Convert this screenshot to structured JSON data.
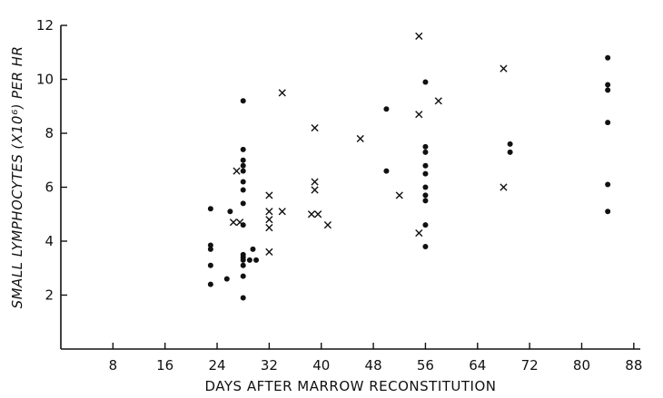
{
  "chart_data": {
    "type": "scatter",
    "xlabel": "DAYS AFTER MARROW RECONSTITUTION",
    "ylabel": "SMALL LYMPHOCYTES (X10⁶) PER HR",
    "xlim": [
      0,
      89
    ],
    "ylim": [
      0,
      12
    ],
    "xticks": [
      8,
      16,
      24,
      32,
      40,
      48,
      56,
      64,
      72,
      80,
      88
    ],
    "yticks": [
      2,
      4,
      6,
      8,
      10,
      12
    ],
    "grid": false,
    "series": [
      {
        "marker": "dot",
        "points": [
          [
            23,
            2.4
          ],
          [
            23,
            3.1
          ],
          [
            23,
            3.7
          ],
          [
            23,
            3.85
          ],
          [
            23,
            5.2
          ],
          [
            25.5,
            2.6
          ],
          [
            26,
            5.1
          ],
          [
            28,
            1.9
          ],
          [
            28,
            2.7
          ],
          [
            28,
            3.1
          ],
          [
            28,
            3.3
          ],
          [
            28,
            3.4
          ],
          [
            28,
            3.5
          ],
          [
            28,
            4.6
          ],
          [
            28,
            5.4
          ],
          [
            28,
            5.9
          ],
          [
            28,
            6.2
          ],
          [
            28,
            6.6
          ],
          [
            28,
            6.8
          ],
          [
            28,
            7.0
          ],
          [
            28,
            7.4
          ],
          [
            28,
            9.2
          ],
          [
            29,
            3.3
          ],
          [
            29.5,
            3.7
          ],
          [
            30,
            3.3
          ],
          [
            50,
            6.6
          ],
          [
            50,
            8.9
          ],
          [
            56,
            3.8
          ],
          [
            56,
            4.6
          ],
          [
            56,
            5.5
          ],
          [
            56,
            5.7
          ],
          [
            56,
            6.0
          ],
          [
            56,
            6.5
          ],
          [
            56,
            6.8
          ],
          [
            56,
            7.3
          ],
          [
            56,
            7.5
          ],
          [
            56,
            9.9
          ],
          [
            69,
            7.3
          ],
          [
            69,
            7.6
          ],
          [
            84,
            5.1
          ],
          [
            84,
            6.1
          ],
          [
            84,
            8.4
          ],
          [
            84,
            9.6
          ],
          [
            84,
            9.8
          ],
          [
            84,
            10.8
          ]
        ]
      },
      {
        "marker": "cross",
        "points": [
          [
            26.5,
            4.7
          ],
          [
            27,
            6.6
          ],
          [
            27.5,
            4.7
          ],
          [
            32,
            3.6
          ],
          [
            32,
            4.5
          ],
          [
            32,
            4.8
          ],
          [
            32,
            5.1
          ],
          [
            32,
            5.7
          ],
          [
            34,
            5.1
          ],
          [
            34,
            9.5
          ],
          [
            38.5,
            5.0
          ],
          [
            39,
            5.9
          ],
          [
            39,
            6.2
          ],
          [
            39,
            8.2
          ],
          [
            39.5,
            5.0
          ],
          [
            41,
            4.6
          ],
          [
            46,
            7.8
          ],
          [
            52,
            5.7
          ],
          [
            55,
            4.3
          ],
          [
            55,
            8.7
          ],
          [
            55,
            11.6
          ],
          [
            58,
            9.2
          ],
          [
            68,
            6.0
          ],
          [
            68,
            10.4
          ]
        ]
      }
    ]
  }
}
